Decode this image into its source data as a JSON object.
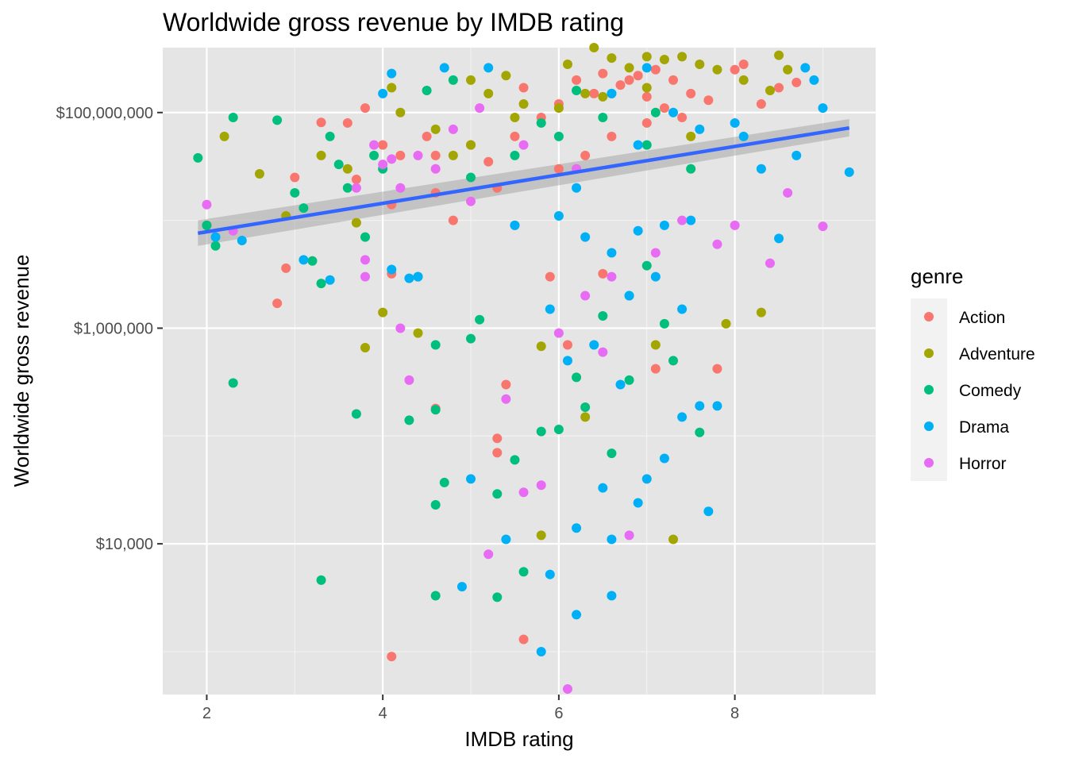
{
  "chart_data": {
    "type": "scatter",
    "title": "Worldwide gross revenue by IMDB rating",
    "xlabel": "IMDB rating",
    "ylabel": "Worldwide gross revenue",
    "x_scale": "linear",
    "y_scale": "log10",
    "xlim": [
      1.5,
      9.6
    ],
    "ylim": [
      400,
      400000000
    ],
    "x_ticks": [
      2,
      4,
      6,
      8
    ],
    "x_tick_labels": [
      "2",
      "4",
      "6",
      "8"
    ],
    "y_ticks": [
      10000,
      1000000,
      100000000
    ],
    "y_tick_labels": [
      "$10,000",
      "$1,000,000",
      "$100,000,000"
    ],
    "grid": true,
    "background": "#e5e5e5",
    "legend": {
      "title": "genre",
      "position": "right",
      "entries": [
        {
          "name": "Action",
          "color": "#F8766D"
        },
        {
          "name": "Adventure",
          "color": "#A3A500"
        },
        {
          "name": "Comedy",
          "color": "#00BF7D"
        },
        {
          "name": "Drama",
          "color": "#00B0F6"
        },
        {
          "name": "Horror",
          "color": "#E76BF3"
        }
      ]
    },
    "trend_line": {
      "method": "lm",
      "color": "#3366FF",
      "band_color": "#999999",
      "x": [
        1.9,
        9.3
      ],
      "y": [
        7600000,
        72000000
      ],
      "band_lower": [
        5800000,
        60000000
      ],
      "band_upper": [
        10000000,
        87000000
      ]
    },
    "series": [
      {
        "name": "Action",
        "color": "#F8766D",
        "points": [
          [
            3.7,
            24000000
          ],
          [
            3.0,
            25000000
          ],
          [
            3.3,
            81000000
          ],
          [
            3.6,
            80000000
          ],
          [
            4.1,
            14000000
          ],
          [
            3.8,
            110000000
          ],
          [
            4.0,
            50000000
          ],
          [
            4.2,
            40000000
          ],
          [
            4.5,
            60000000
          ],
          [
            4.6,
            40000000
          ],
          [
            2.9,
            3600000
          ],
          [
            2.8,
            1700000
          ],
          [
            4.1,
            3200000
          ],
          [
            4.6,
            18000000
          ],
          [
            4.8,
            10000000
          ],
          [
            5.0,
            50000000
          ],
          [
            5.2,
            35000000
          ],
          [
            5.3,
            20000000
          ],
          [
            5.5,
            60000000
          ],
          [
            5.6,
            170000000
          ],
          [
            5.8,
            90000000
          ],
          [
            6.0,
            120000000
          ],
          [
            6.2,
            200000000
          ],
          [
            6.4,
            150000000
          ],
          [
            6.5,
            230000000
          ],
          [
            6.7,
            180000000
          ],
          [
            6.9,
            220000000
          ],
          [
            7.1,
            250000000
          ],
          [
            7.3,
            200000000
          ],
          [
            7.5,
            150000000
          ],
          [
            7.7,
            130000000
          ],
          [
            8.0,
            250000000
          ],
          [
            8.1,
            280000000
          ],
          [
            8.3,
            120000000
          ],
          [
            8.5,
            170000000
          ],
          [
            8.7,
            190000000
          ],
          [
            5.4,
            300000
          ],
          [
            5.3,
            95000
          ],
          [
            5.3,
            70000
          ],
          [
            5.6,
            1300
          ],
          [
            4.1,
            900
          ],
          [
            7.8,
            420000
          ],
          [
            7.1,
            420000
          ],
          [
            6.1,
            700000
          ],
          [
            4.6,
            180000
          ],
          [
            5.5,
            9000000
          ],
          [
            6.0,
            30000000
          ],
          [
            6.3,
            40000000
          ],
          [
            6.6,
            60000000
          ],
          [
            7.0,
            80000000
          ],
          [
            7.2,
            110000000
          ],
          [
            5.9,
            3000000
          ],
          [
            6.5,
            3200000
          ],
          [
            6.8,
            200000000
          ],
          [
            7.4,
            90000000
          ],
          [
            7.0,
            140000000
          ]
        ]
      },
      {
        "name": "Adventure",
        "color": "#A3A500",
        "points": [
          [
            2.0,
            9000000
          ],
          [
            2.2,
            60000000
          ],
          [
            2.6,
            27000000
          ],
          [
            2.9,
            11000000
          ],
          [
            3.3,
            40000000
          ],
          [
            3.6,
            30000000
          ],
          [
            3.8,
            660000
          ],
          [
            3.7,
            9500000
          ],
          [
            4.0,
            1400000
          ],
          [
            4.1,
            170000000
          ],
          [
            4.2,
            100000000
          ],
          [
            4.4,
            900000
          ],
          [
            4.6,
            70000000
          ],
          [
            4.8,
            40000000
          ],
          [
            5.0,
            200000000
          ],
          [
            5.2,
            150000000
          ],
          [
            5.4,
            220000000
          ],
          [
            5.6,
            120000000
          ],
          [
            5.8,
            680000
          ],
          [
            5.8,
            12000
          ],
          [
            6.1,
            280000000
          ],
          [
            6.3,
            150000000
          ],
          [
            6.4,
            400000000
          ],
          [
            6.6,
            320000000
          ],
          [
            6.8,
            260000000
          ],
          [
            7.0,
            330000000
          ],
          [
            7.2,
            310000000
          ],
          [
            7.3,
            11000
          ],
          [
            7.4,
            330000000
          ],
          [
            7.6,
            280000000
          ],
          [
            7.8,
            250000000
          ],
          [
            7.9,
            1100000
          ],
          [
            8.1,
            200000000
          ],
          [
            8.3,
            1400000
          ],
          [
            8.4,
            160000000
          ],
          [
            8.5,
            340000000
          ],
          [
            8.6,
            250000000
          ],
          [
            6.3,
            150000
          ],
          [
            7.1,
            700000
          ],
          [
            5.0,
            50000000
          ],
          [
            5.5,
            90000000
          ],
          [
            6.0,
            110000000
          ],
          [
            6.5,
            140000000
          ],
          [
            7.0,
            170000000
          ],
          [
            7.5,
            60000000
          ]
        ]
      },
      {
        "name": "Comedy",
        "color": "#00BF7D",
        "points": [
          [
            1.9,
            38000000
          ],
          [
            2.0,
            9000000
          ],
          [
            2.1,
            5800000
          ],
          [
            2.3,
            90000000
          ],
          [
            2.3,
            310000
          ],
          [
            2.8,
            85000000
          ],
          [
            3.0,
            18000000
          ],
          [
            3.1,
            13000000
          ],
          [
            3.2,
            4200000
          ],
          [
            3.3,
            2600000
          ],
          [
            3.3,
            4600
          ],
          [
            3.4,
            60000000
          ],
          [
            3.5,
            33000000
          ],
          [
            3.6,
            20000000
          ],
          [
            3.7,
            160000
          ],
          [
            3.8,
            7000000
          ],
          [
            3.9,
            40000000
          ],
          [
            4.0,
            30000000
          ],
          [
            4.3,
            140000
          ],
          [
            4.4,
            3000000
          ],
          [
            4.5,
            160000000
          ],
          [
            4.6,
            700000
          ],
          [
            4.6,
            175000
          ],
          [
            4.6,
            23000
          ],
          [
            4.6,
            3300
          ],
          [
            4.7,
            37000
          ],
          [
            4.8,
            200000000
          ],
          [
            5.0,
            800000
          ],
          [
            5.1,
            1200000
          ],
          [
            5.3,
            29000
          ],
          [
            5.3,
            3200
          ],
          [
            5.5,
            60000
          ],
          [
            5.6,
            5500
          ],
          [
            5.8,
            110000
          ],
          [
            6.0,
            115000
          ],
          [
            6.2,
            350000
          ],
          [
            6.3,
            185000
          ],
          [
            6.5,
            1300000
          ],
          [
            6.6,
            69000
          ],
          [
            6.8,
            2000000
          ],
          [
            7.0,
            3800000
          ],
          [
            7.3,
            500000
          ],
          [
            7.6,
            108000
          ],
          [
            5.0,
            25000000
          ],
          [
            5.5,
            40000000
          ],
          [
            6.0,
            60000000
          ],
          [
            6.5,
            90000000
          ],
          [
            7.0,
            50000000
          ],
          [
            7.5,
            30000000
          ],
          [
            6.8,
            330000
          ],
          [
            7.2,
            1100000
          ],
          [
            6.2,
            160000000
          ],
          [
            5.8,
            80000000
          ],
          [
            6.6,
            150000000
          ],
          [
            7.1,
            100000000
          ]
        ]
      },
      {
        "name": "Drama",
        "color": "#00B0F6",
        "points": [
          [
            2.1,
            7000000
          ],
          [
            2.4,
            6500000
          ],
          [
            3.1,
            4300000
          ],
          [
            3.4,
            2800000
          ],
          [
            4.0,
            150000000
          ],
          [
            4.1,
            230000000
          ],
          [
            4.1,
            3500000
          ],
          [
            4.3,
            2900000
          ],
          [
            4.4,
            3000000
          ],
          [
            4.9,
            4000
          ],
          [
            5.0,
            40000
          ],
          [
            5.4,
            11000
          ],
          [
            5.8,
            1000
          ],
          [
            5.9,
            5200
          ],
          [
            6.2,
            2200
          ],
          [
            6.2,
            14000
          ],
          [
            6.5,
            33000
          ],
          [
            6.6,
            11000
          ],
          [
            6.6,
            3300
          ],
          [
            6.9,
            24000
          ],
          [
            7.0,
            40000
          ],
          [
            7.2,
            62000
          ],
          [
            7.4,
            150000
          ],
          [
            7.6,
            190000
          ],
          [
            7.7,
            20000
          ],
          [
            7.8,
            190000
          ],
          [
            8.0,
            80000000
          ],
          [
            8.1,
            60000000
          ],
          [
            8.3,
            30000000
          ],
          [
            8.5,
            6800000
          ],
          [
            8.7,
            40000000
          ],
          [
            8.8,
            260000000
          ],
          [
            8.9,
            200000000
          ],
          [
            9.0,
            110000000
          ],
          [
            9.3,
            28000000
          ],
          [
            5.5,
            9000000
          ],
          [
            6.0,
            11000000
          ],
          [
            6.3,
            7000000
          ],
          [
            6.6,
            5000000
          ],
          [
            6.9,
            8000000
          ],
          [
            7.2,
            9000000
          ],
          [
            7.5,
            10000000
          ],
          [
            7.0,
            260000000
          ],
          [
            6.6,
            150000000
          ],
          [
            7.3,
            100000000
          ],
          [
            7.6,
            70000000
          ],
          [
            5.9,
            1500000
          ],
          [
            6.1,
            500000
          ],
          [
            6.4,
            700000
          ],
          [
            6.7,
            300000
          ],
          [
            4.7,
            260000000
          ],
          [
            5.2,
            260000000
          ],
          [
            6.8,
            2000000
          ],
          [
            7.1,
            3000000
          ],
          [
            7.4,
            1500000
          ],
          [
            6.2,
            20000000
          ],
          [
            6.9,
            50000000
          ]
        ]
      },
      {
        "name": "Horror",
        "color": "#E76BF3",
        "points": [
          [
            2.0,
            14000000
          ],
          [
            2.3,
            8000000
          ],
          [
            3.7,
            20000000
          ],
          [
            3.9,
            50000000
          ],
          [
            4.0,
            33000000
          ],
          [
            4.1,
            37000000
          ],
          [
            4.2,
            1000000
          ],
          [
            4.2,
            20000000
          ],
          [
            4.3,
            330000
          ],
          [
            4.4,
            40000000
          ],
          [
            4.6,
            30000000
          ],
          [
            4.8,
            70000000
          ],
          [
            5.1,
            110000000
          ],
          [
            5.2,
            8000
          ],
          [
            5.4,
            220000
          ],
          [
            5.6,
            30000
          ],
          [
            5.8,
            35000
          ],
          [
            6.0,
            900000
          ],
          [
            6.1,
            450
          ],
          [
            6.3,
            2000000
          ],
          [
            6.6,
            3000000
          ],
          [
            6.8,
            12000
          ],
          [
            7.1,
            5000000
          ],
          [
            7.4,
            10000000
          ],
          [
            7.8,
            6000000
          ],
          [
            8.0,
            9000000
          ],
          [
            8.4,
            4000000
          ],
          [
            8.6,
            18000000
          ],
          [
            9.0,
            8800000
          ],
          [
            3.8,
            3000000
          ],
          [
            3.8,
            4300000
          ],
          [
            5.0,
            15000000
          ],
          [
            6.5,
            600000
          ],
          [
            6.2,
            30000000
          ],
          [
            5.6,
            50000000
          ]
        ]
      }
    ]
  }
}
